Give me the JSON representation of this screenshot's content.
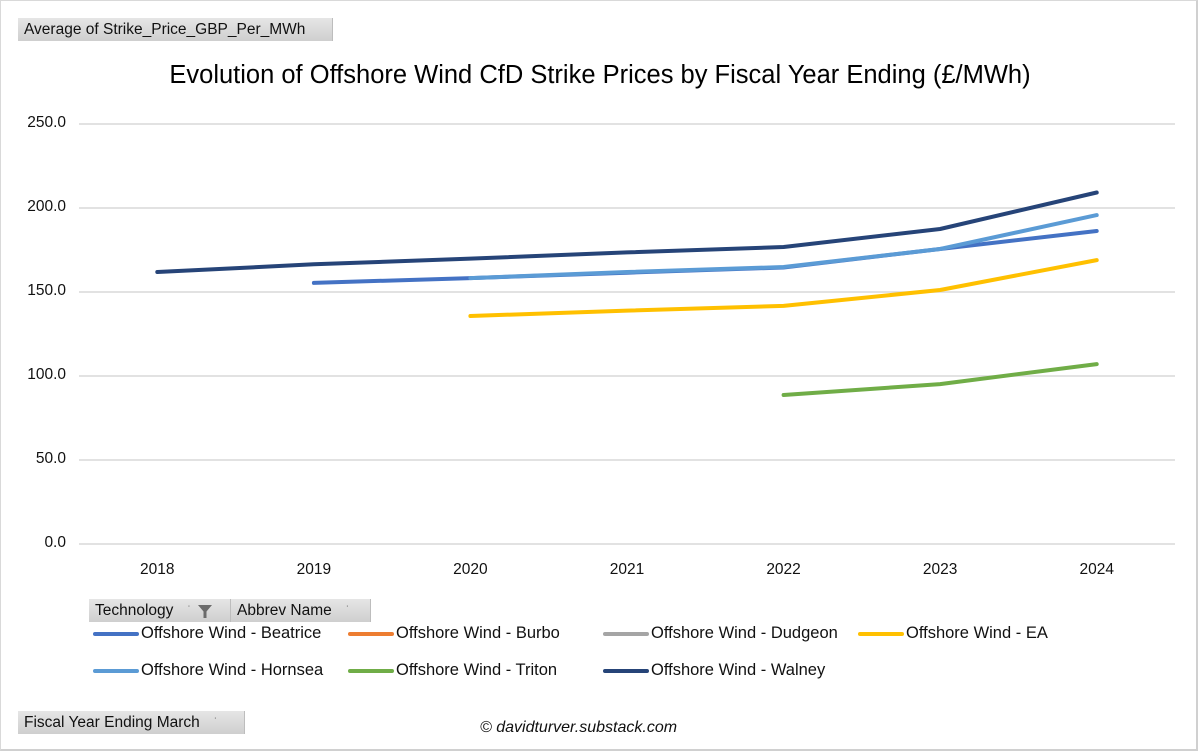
{
  "pivot": {
    "value_field": "Average of Strike_Price_GBP_Per_MWh",
    "technology_field": "Technology",
    "abbrev_field": "Abbrev Name",
    "fiscal_field": "Fiscal Year Ending March",
    "dropdown_glyph": "˙"
  },
  "credit": "© davidturver.substack.com",
  "chart_data": {
    "type": "line",
    "title": "Evolution of Offshore Wind CfD Strike Prices by Fiscal Year Ending (£/MWh)",
    "xlabel": "",
    "ylabel": "",
    "x": [
      "2018",
      "2019",
      "2020",
      "2021",
      "2022",
      "2023",
      "2024"
    ],
    "ylim": [
      0,
      250
    ],
    "yticks": [
      "0.0",
      "50.0",
      "100.0",
      "150.0",
      "200.0",
      "250.0"
    ],
    "ytick_values": [
      0,
      50,
      100,
      150,
      200,
      250
    ],
    "grid": true,
    "legend_position": "bottom",
    "series": [
      {
        "name": "Offshore Wind - Beatrice",
        "color": "#4472C4",
        "values": [
          null,
          155.4,
          158.3,
          161.5,
          164.6,
          175.6,
          186.3
        ]
      },
      {
        "name": "Offshore Wind - Burbo",
        "color": "#ED7D31",
        "values": [
          null,
          null,
          null,
          null,
          null,
          null,
          null
        ]
      },
      {
        "name": "Offshore Wind - Dudgeon",
        "color": "#A5A5A5",
        "values": [
          null,
          null,
          null,
          null,
          null,
          null,
          null
        ]
      },
      {
        "name": "Offshore Wind - EA",
        "color": "#FFC000",
        "values": [
          null,
          null,
          135.7,
          138.9,
          141.7,
          151.2,
          169.0
        ]
      },
      {
        "name": "Offshore Wind - Hornsea",
        "color": "#5B9BD5",
        "values": [
          null,
          null,
          158.3,
          161.9,
          164.9,
          175.6,
          195.8
        ]
      },
      {
        "name": "Offshore Wind - Triton",
        "color": "#70AD47",
        "values": [
          null,
          null,
          null,
          null,
          88.7,
          95.2,
          107.1
        ]
      },
      {
        "name": "Offshore Wind - Walney",
        "color": "#264478",
        "values": [
          161.9,
          166.5,
          169.9,
          173.6,
          176.8,
          187.5,
          209.2
        ]
      }
    ]
  }
}
